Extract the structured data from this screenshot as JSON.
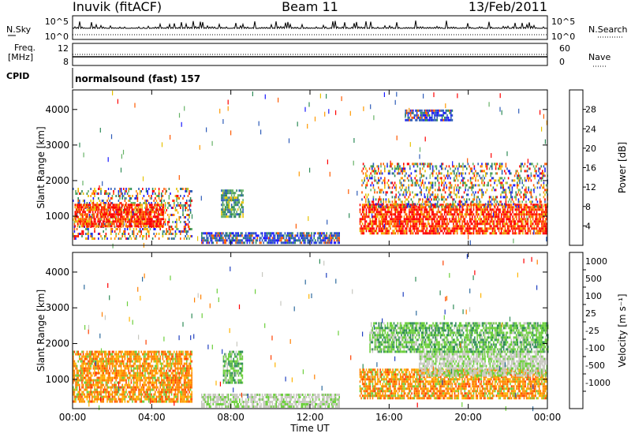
{
  "header": {
    "site": "Inuvik (fitACF)",
    "beam": "Beam 11",
    "date": "13/Feb/2011"
  },
  "strip": {
    "nsky_label": "N.Sky",
    "nsearch_label": "N.Search",
    "freq_label_line1": "Freq.",
    "freq_label_line2": "[MHz]",
    "nave_label": "Nave",
    "cpid_label": "CPID",
    "cpid_value": "normalsound (fast) 157",
    "nsky_ticks": [
      "10^5",
      "10^0"
    ],
    "nsearch_ticks": [
      "10^5",
      "10^0"
    ],
    "freq_ticks": [
      "12",
      "8"
    ],
    "nave_ticks": [
      "60",
      "0"
    ]
  },
  "chart_data": [
    {
      "type": "heatmap",
      "name": "power",
      "xlabel": "",
      "ylabel": "Slant Range [km]",
      "x_ticks": [
        "00:00",
        "04:00",
        "08:00",
        "12:00",
        "16:00",
        "20:00",
        "00:00"
      ],
      "x_range_hours": [
        0,
        24
      ],
      "y_ticks": [
        1000,
        2000,
        3000,
        4000
      ],
      "ylim": [
        180,
        4550
      ],
      "colorbar": {
        "label": "Power [dB]",
        "ticks": [
          4,
          8,
          12,
          16,
          20,
          24,
          28
        ],
        "range": [
          0,
          30
        ],
        "colors": [
          "#1a1aff",
          "#2e5cb8",
          "#2e8b57",
          "#66b266",
          "#e6c200",
          "#ff9900",
          "#ff5a00",
          "#ff0000"
        ]
      },
      "regions": [
        {
          "t0": 0.0,
          "t1": 6.0,
          "r0": 350,
          "r1": 1800,
          "level": "mixed"
        },
        {
          "t0": 0.1,
          "t1": 4.6,
          "r0": 700,
          "r1": 1350,
          "level": "high"
        },
        {
          "t0": 6.5,
          "t1": 13.5,
          "r0": 250,
          "r1": 550,
          "level": "low"
        },
        {
          "t0": 7.5,
          "t1": 8.6,
          "r0": 1000,
          "r1": 1750,
          "level": "mid"
        },
        {
          "t0": 14.5,
          "t1": 24.0,
          "r0": 500,
          "r1": 1350,
          "level": "high"
        },
        {
          "t0": 14.6,
          "t1": 24.0,
          "r0": 1300,
          "r1": 2500,
          "level": "mixed"
        },
        {
          "t0": 16.8,
          "t1": 19.2,
          "r0": 3700,
          "r1": 4000,
          "level": "low"
        }
      ]
    },
    {
      "type": "heatmap",
      "name": "velocity",
      "xlabel": "Time UT",
      "ylabel": "Slant Range [km]",
      "x_ticks": [
        "00:00",
        "04:00",
        "08:00",
        "12:00",
        "16:00",
        "20:00",
        "00:00"
      ],
      "x_range_hours": [
        0,
        24
      ],
      "y_ticks": [
        1000,
        2000,
        3000,
        4000
      ],
      "ylim": [
        180,
        4550
      ],
      "colorbar": {
        "label": "Velocity [m s⁻¹]",
        "ticks": [
          "1000",
          "500",
          "100",
          "25",
          "-25",
          "-100",
          "-500",
          "-1000"
        ],
        "colors": [
          "#2040c0",
          "#2e6b9e",
          "#2e8b57",
          "#6ccf3c",
          "#c8c8c0",
          "#ffb300",
          "#ff8000",
          "#ff4000",
          "#ff0000"
        ]
      },
      "regions": [
        {
          "t0": 0.0,
          "t1": 6.0,
          "r0": 350,
          "r1": 1800,
          "level": "negative"
        },
        {
          "t0": 7.6,
          "t1": 8.6,
          "r0": 900,
          "r1": 1800,
          "level": "positive"
        },
        {
          "t0": 6.5,
          "t1": 13.5,
          "r0": 250,
          "r1": 600,
          "level": "zero"
        },
        {
          "t0": 14.5,
          "t1": 24.0,
          "r0": 450,
          "r1": 1300,
          "level": "negative"
        },
        {
          "t0": 17.5,
          "t1": 24.0,
          "r0": 1100,
          "r1": 1800,
          "level": "zero"
        },
        {
          "t0": 15.0,
          "t1": 24.0,
          "r0": 1800,
          "r1": 2600,
          "level": "positive"
        }
      ]
    }
  ]
}
